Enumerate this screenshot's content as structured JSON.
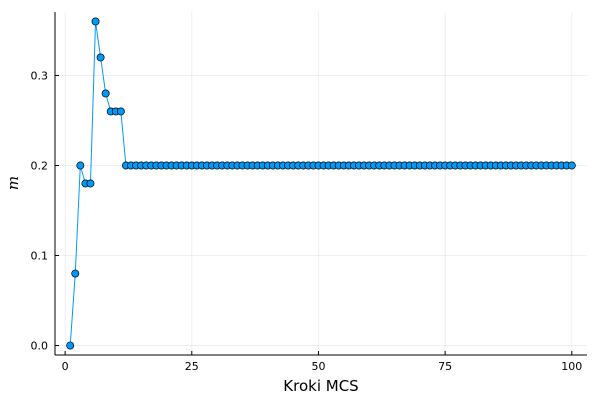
{
  "chart_data": {
    "type": "scatter",
    "title": "",
    "xlabel": "Kroki MCS",
    "ylabel": "m",
    "xlim": [
      -2,
      103
    ],
    "ylim": [
      -0.0105,
      0.3705
    ],
    "xticks": [
      0,
      25,
      50,
      75,
      100
    ],
    "xtick_labels": [
      "0",
      "25",
      "50",
      "75",
      "100"
    ],
    "yticks": [
      0.0,
      0.1,
      0.2,
      0.3
    ],
    "ytick_labels": [
      "0.0",
      "0.1",
      "0.2",
      "0.3"
    ],
    "grid": true,
    "legend": "none",
    "series": [
      {
        "color": "#009AFA",
        "marker": "circle",
        "line": true,
        "x": [
          1,
          2,
          3,
          4,
          5,
          6,
          7,
          8,
          9,
          10,
          11,
          12,
          13,
          14,
          15,
          16,
          17,
          18,
          19,
          20,
          21,
          22,
          23,
          24,
          25,
          26,
          27,
          28,
          29,
          30,
          31,
          32,
          33,
          34,
          35,
          36,
          37,
          38,
          39,
          40,
          41,
          42,
          43,
          44,
          45,
          46,
          47,
          48,
          49,
          50,
          51,
          52,
          53,
          54,
          55,
          56,
          57,
          58,
          59,
          60,
          61,
          62,
          63,
          64,
          65,
          66,
          67,
          68,
          69,
          70,
          71,
          72,
          73,
          74,
          75,
          76,
          77,
          78,
          79,
          80,
          81,
          82,
          83,
          84,
          85,
          86,
          87,
          88,
          89,
          90,
          91,
          92,
          93,
          94,
          95,
          96,
          97,
          98,
          99,
          100
        ],
        "y": [
          0.0,
          0.08,
          0.2,
          0.18,
          0.18,
          0.36,
          0.32,
          0.28,
          0.26,
          0.26,
          0.26,
          0.2,
          0.2,
          0.2,
          0.2,
          0.2,
          0.2,
          0.2,
          0.2,
          0.2,
          0.2,
          0.2,
          0.2,
          0.2,
          0.2,
          0.2,
          0.2,
          0.2,
          0.2,
          0.2,
          0.2,
          0.2,
          0.2,
          0.2,
          0.2,
          0.2,
          0.2,
          0.2,
          0.2,
          0.2,
          0.2,
          0.2,
          0.2,
          0.2,
          0.2,
          0.2,
          0.2,
          0.2,
          0.2,
          0.2,
          0.2,
          0.2,
          0.2,
          0.2,
          0.2,
          0.2,
          0.2,
          0.2,
          0.2,
          0.2,
          0.2,
          0.2,
          0.2,
          0.2,
          0.2,
          0.2,
          0.2,
          0.2,
          0.2,
          0.2,
          0.2,
          0.2,
          0.2,
          0.2,
          0.2,
          0.2,
          0.2,
          0.2,
          0.2,
          0.2,
          0.2,
          0.2,
          0.2,
          0.2,
          0.2,
          0.2,
          0.2,
          0.2,
          0.2,
          0.2,
          0.2,
          0.2,
          0.2,
          0.2,
          0.2,
          0.2,
          0.2,
          0.2,
          0.2,
          0.2
        ]
      }
    ]
  }
}
